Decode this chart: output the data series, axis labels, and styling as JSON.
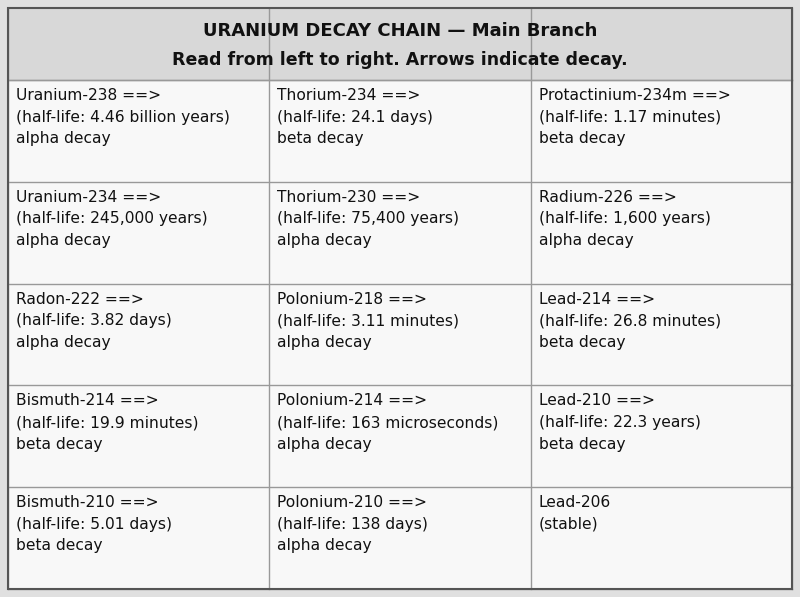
{
  "title_line1": "URANIUM DECAY CHAIN — Main Branch",
  "title_line2": "Read from left to right. Arrows indicate decay.",
  "bg_color": "#e0e0e0",
  "cell_bg_color": "#f8f8f8",
  "border_color": "#999999",
  "title_bg_color": "#d8d8d8",
  "rows": [
    [
      "Uranium-238 ==>\n(half-life: 4.46 billion years)\nalpha decay",
      "Thorium-234 ==>\n(half-life: 24.1 days)\nbeta decay",
      "Protactinium-234m ==>\n(half-life: 1.17 minutes)\nbeta decay"
    ],
    [
      "Uranium-234 ==>\n(half-life: 245,000 years)\nalpha decay",
      "Thorium-230 ==>\n(half-life: 75,400 years)\nalpha decay",
      "Radium-226 ==>\n(half-life: 1,600 years)\nalpha decay"
    ],
    [
      "Radon-222 ==>\n(half-life: 3.82 days)\nalpha decay",
      "Polonium-218 ==>\n(half-life: 3.11 minutes)\nalpha decay",
      "Lead-214 ==>\n(half-life: 26.8 minutes)\nbeta decay"
    ],
    [
      "Bismuth-214 ==>\n(half-life: 19.9 minutes)\nbeta decay",
      "Polonium-214 ==>\n(half-life: 163 microseconds)\nalpha decay",
      "Lead-210 ==>\n(half-life: 22.3 years)\nbeta decay"
    ],
    [
      "Bismuth-210 ==>\n(half-life: 5.01 days)\nbeta decay",
      "Polonium-210 ==>\n(half-life: 138 days)\nalpha decay",
      "Lead-206\n(stable)"
    ]
  ],
  "num_rows": 5,
  "num_cols": 3,
  "font_size": 11.2,
  "title_font_size": 13.0,
  "fig_width": 8.0,
  "fig_height": 5.97,
  "dpi": 100
}
